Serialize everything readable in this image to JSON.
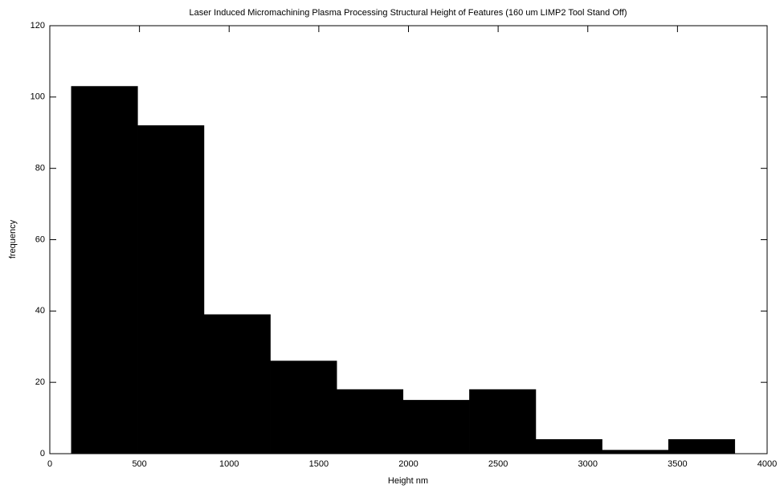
{
  "chart_data": {
    "type": "histogram",
    "title": "Laser Induced Micromachining Plasma Processing Structural Height of Features (160 um LIMP2 Tool Stand Off)",
    "x_label": "Height nm",
    "y_label": "frequency",
    "bins": [
      120,
      490,
      860,
      1230,
      1600,
      1970,
      2340,
      2710,
      3080,
      3450,
      3820
    ],
    "values": [
      103,
      92,
      39,
      26,
      18,
      15,
      18,
      4,
      1,
      4
    ],
    "color": "#000000",
    "xlim": [
      0,
      4000
    ],
    "xticks": [
      0,
      500,
      1000,
      1500,
      2000,
      2500,
      3000,
      3500,
      4000
    ],
    "ylim": [
      0,
      120
    ],
    "yticks": [
      0,
      20,
      40,
      60,
      80,
      100,
      120
    ]
  }
}
